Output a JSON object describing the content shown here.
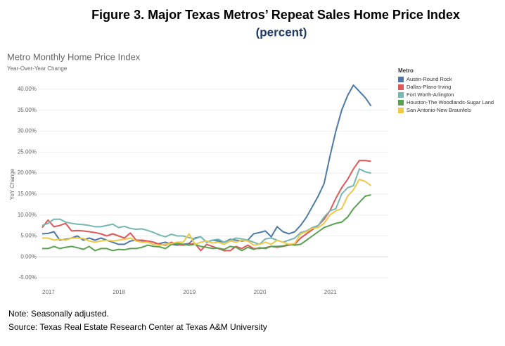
{
  "figure": {
    "title": "Figure 3. Major Texas Metros’ Repeat Sales Home Price Index",
    "subtitle": "(percent)"
  },
  "notes": [
    "Note: Seasonally adjusted.",
    "Source: Texas Real Estate Research Center at Texas A&M University"
  ],
  "chart_data": {
    "type": "line",
    "title": "Metro Monthly Home Price Index",
    "subtitle": "Year-Over-Year Change",
    "y_label": "YoY Change",
    "legend_title": "Metro",
    "legend": "top-right",
    "grid": true,
    "categories": [
      "2017",
      null,
      null,
      null,
      null,
      null,
      null,
      null,
      null,
      null,
      null,
      null,
      "2018",
      null,
      null,
      null,
      null,
      null,
      null,
      null,
      null,
      null,
      null,
      null,
      "2019",
      null,
      null,
      null,
      null,
      null,
      null,
      null,
      null,
      null,
      null,
      null,
      "2020",
      null,
      null,
      null,
      null,
      null,
      null,
      null,
      null,
      null,
      null,
      null,
      "2021",
      null,
      null,
      null,
      null,
      null,
      null,
      null,
      null
    ],
    "ylim": [
      -7.5,
      42
    ],
    "yticks": [
      {
        "value": -5,
        "label": "-5.00%"
      },
      {
        "value": 0,
        "label": "0.00%"
      },
      {
        "value": 5,
        "label": "5.00%"
      },
      {
        "value": 10,
        "label": "10.00%"
      },
      {
        "value": 15,
        "label": "15.00%"
      },
      {
        "value": 20,
        "label": "20.00%"
      },
      {
        "value": 25,
        "label": "25.00%"
      },
      {
        "value": 30,
        "label": "30.00%"
      },
      {
        "value": 35,
        "label": "35.00%"
      },
      {
        "value": 40,
        "label": "40.00%"
      }
    ],
    "series": [
      {
        "name": "Austin-Round Rock",
        "color": "#4e79a7",
        "values": [
          5.5,
          5.6,
          6,
          4,
          4.2,
          4.5,
          5,
          4,
          4.5,
          4,
          4.5,
          4,
          3.5,
          3,
          3,
          3.8,
          4,
          3.8,
          3.5,
          3,
          3.2,
          3.5,
          3,
          2.8,
          3,
          3.2,
          4.5,
          4.8,
          3.5,
          4,
          3.8,
          3.5,
          4.2,
          4,
          3.8,
          4,
          5.5,
          5.8,
          6.2,
          4.8,
          7.2,
          6,
          5.5,
          6,
          7.5,
          9.5,
          12,
          14.5,
          17.5,
          24,
          30,
          35,
          38.5,
          41,
          39.5,
          38,
          36
        ]
      },
      {
        "name": "Dallas-Plano-Irving",
        "color": "#e15759",
        "values": [
          7,
          8.8,
          7.2,
          7.5,
          8,
          6.2,
          6.3,
          6.2,
          6,
          5.8,
          5.5,
          5,
          5.5,
          5,
          4.5,
          5.7,
          4,
          4,
          3.8,
          3.5,
          3,
          2.8,
          3.5,
          3,
          2.8,
          3,
          3.2,
          1.5,
          3,
          2.5,
          2,
          1.5,
          1.5,
          2.5,
          2,
          2.8,
          2,
          2,
          2.2,
          2.5,
          2.3,
          2.5,
          2.8,
          3,
          4.5,
          5.5,
          6.5,
          7.5,
          9,
          11,
          14,
          16.5,
          18.5,
          21,
          23,
          23,
          22.8
        ]
      },
      {
        "name": "Fort Worth-Arlington",
        "color": "#76b7b2",
        "values": [
          7.5,
          8,
          9,
          9,
          8.3,
          8,
          7.8,
          7.7,
          7.5,
          7.2,
          7.2,
          7.5,
          7.8,
          7,
          7.3,
          6.8,
          6.6,
          6.7,
          6.3,
          5.8,
          5.2,
          4.8,
          5.4,
          5,
          5,
          4.6,
          4.3,
          4.8,
          3.5,
          4,
          4.2,
          3.5,
          4,
          4.5,
          4.3,
          4,
          3.5,
          3,
          4.3,
          4.5,
          4,
          3.5,
          4,
          4.5,
          5.8,
          6.2,
          7,
          7.5,
          9.5,
          11,
          11.5,
          15,
          16.5,
          17,
          21,
          20.3,
          20
        ]
      },
      {
        "name": "Houston-The Woodlands-Sugar Land",
        "color": "#59a14f",
        "values": [
          2,
          2,
          2.5,
          2,
          2.3,
          2.5,
          2.2,
          1.8,
          2.5,
          1.5,
          2,
          2,
          1.5,
          1.8,
          1.7,
          2,
          2,
          2.3,
          2.8,
          2.5,
          2.4,
          2,
          3,
          3.2,
          3,
          2.8,
          3,
          2.5,
          2.3,
          2,
          2.1,
          1.8,
          2.5,
          2.3,
          1.5,
          2.3,
          1.8,
          2.2,
          2,
          2.5,
          2.5,
          2.6,
          3,
          2.8,
          3,
          4,
          5,
          6,
          7,
          7.5,
          8,
          8.3,
          9.5,
          11.5,
          13,
          14.5,
          14.8
        ]
      },
      {
        "name": "San Antonio-New Braunfels",
        "color": "#edc948",
        "values": [
          4.5,
          4.5,
          4,
          4.2,
          4,
          4.5,
          4.5,
          4.4,
          3.8,
          3.5,
          3.8,
          4,
          3.8,
          4,
          4.2,
          4.5,
          3.8,
          3.5,
          3.5,
          3,
          2.8,
          3,
          3.2,
          3.5,
          3.5,
          5.5,
          3,
          3.5,
          3.8,
          3.3,
          3.5,
          3,
          3.8,
          3.5,
          4,
          3.8,
          2.8,
          3,
          3.5,
          3,
          4,
          3.5,
          3,
          3.2,
          5.5,
          6,
          6.8,
          7,
          8,
          10,
          11,
          11.5,
          14.5,
          16,
          18.5,
          18,
          17
        ]
      }
    ]
  }
}
